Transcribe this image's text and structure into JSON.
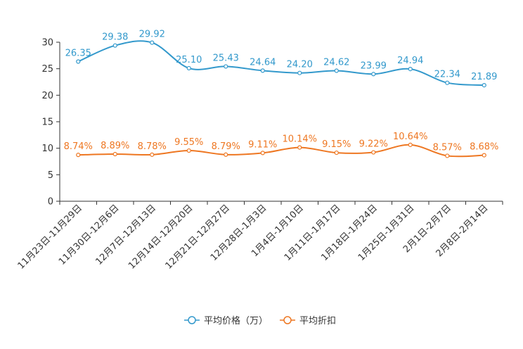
{
  "chart_data": {
    "type": "line",
    "title": "",
    "xlabel": "",
    "ylabel": "",
    "ylim": [
      0,
      30
    ],
    "yticks": [
      0,
      5,
      10,
      15,
      20,
      25,
      30
    ],
    "grid": false,
    "legend_position": "bottom-center",
    "categories": [
      "11月23日-11月29日",
      "11月30日-12月6日",
      "12月7日-12月13日",
      "12月14日-12月20日",
      "12月21日-12月27日",
      "12月28日-1月3日",
      "1月4日-1月10日",
      "1月11日-1月17日",
      "1月18日-1月24日",
      "1月25日-1月31日",
      "2月1日-2月7日",
      "2月8日-2月14日"
    ],
    "series": [
      {
        "name": "平均价格（万）",
        "color": "#3399cc",
        "values": [
          26.35,
          29.38,
          29.92,
          25.1,
          25.43,
          24.64,
          24.2,
          24.62,
          23.99,
          24.94,
          22.34,
          21.89
        ],
        "labels": [
          "26.35",
          "29.38",
          "29.92",
          "25.10",
          "25.43",
          "24.64",
          "24.20",
          "24.62",
          "23.99",
          "24.94",
          "22.34",
          "21.89"
        ]
      },
      {
        "name": "平均折扣",
        "color": "#ee7722",
        "values": [
          8.74,
          8.89,
          8.78,
          9.55,
          8.79,
          9.11,
          10.14,
          9.15,
          9.22,
          10.64,
          8.57,
          8.68
        ],
        "labels": [
          "8.74%",
          "8.89%",
          "8.78%",
          "9.55%",
          "8.79%",
          "9.11%",
          "10.14%",
          "9.15%",
          "9.22%",
          "10.64%",
          "8.57%",
          "8.68%"
        ]
      }
    ]
  }
}
